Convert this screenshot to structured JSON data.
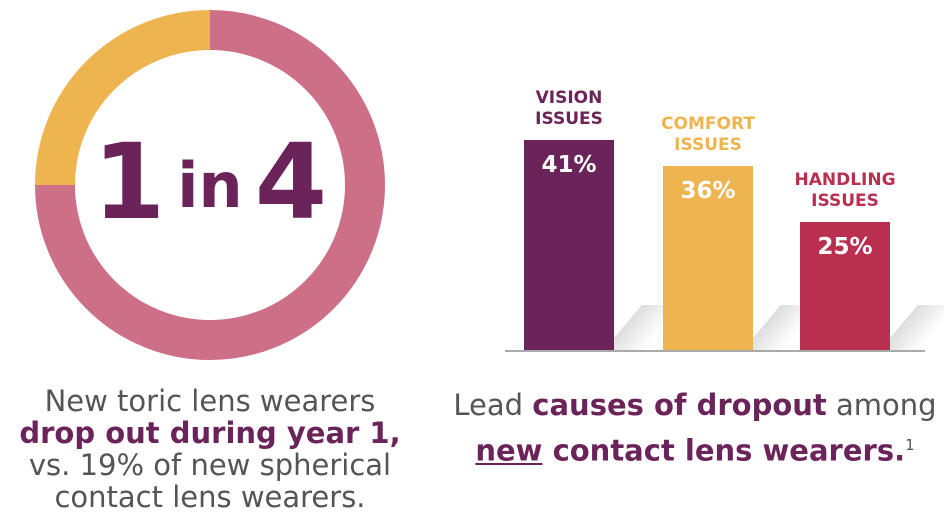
{
  "chart_data": [
    {
      "type": "donut",
      "center_label": [
        "1",
        "in",
        "4"
      ],
      "values": [
        75,
        25
      ],
      "colors": [
        "#cd6f87",
        "#edb450"
      ],
      "caption": [
        "New toric lens wearers",
        "drop out during year 1,",
        "vs. 19% of new spherical",
        "contact lens wearers."
      ]
    },
    {
      "type": "bar",
      "categories": [
        "VISION ISSUES",
        "COMFORT ISSUES",
        "HANDLING ISSUES"
      ],
      "values": [
        41,
        36,
        25
      ],
      "value_labels": [
        "41%",
        "36%",
        "25%"
      ],
      "colors": [
        "#6b2459",
        "#edb450",
        "#b92f4f"
      ],
      "caption": [
        "Lead",
        "causes of dropout",
        "among",
        "new",
        "contact lens wearers.",
        "1"
      ]
    }
  ]
}
